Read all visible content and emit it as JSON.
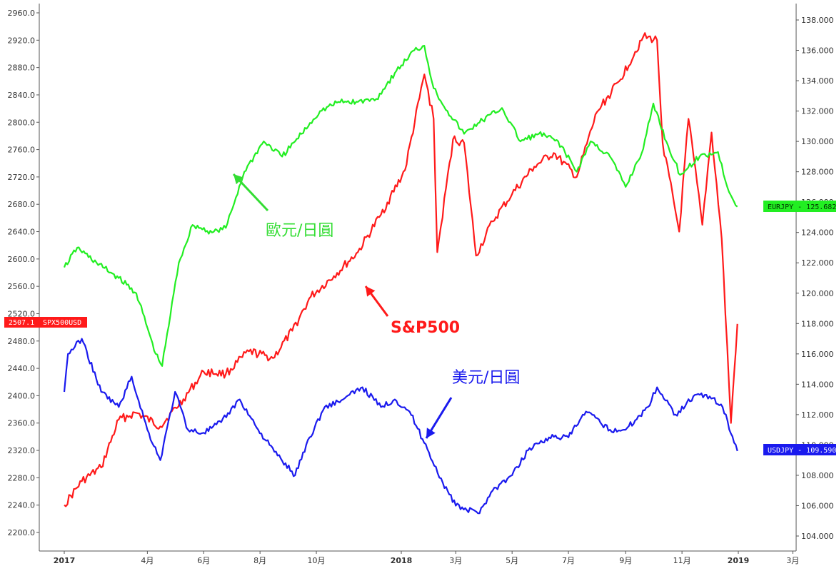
{
  "chart_data": {
    "type": "line",
    "title": "",
    "x_ticks": [
      "2017",
      "4月",
      "6月",
      "8月",
      "10月",
      "2018",
      "3月",
      "5月",
      "7月",
      "9月",
      "11月",
      "2019",
      "3月"
    ],
    "x_ticks_bold": [
      "2017",
      "2018",
      "2019"
    ],
    "y_left_ticks": [
      "2960.0",
      "2920.0",
      "2880.0",
      "2840.0",
      "2800.0",
      "2760.0",
      "2720.0",
      "2680.0",
      "2640.0",
      "2600.0",
      "2560.0",
      "2520.0",
      "2480.0",
      "2440.0",
      "2400.0",
      "2360.0",
      "2320.0",
      "2280.0",
      "2240.0",
      "2200.0"
    ],
    "y_right_ticks": [
      "138.000",
      "136.000",
      "134.000",
      "132.000",
      "130.000",
      "128.000",
      "126.000",
      "124.000",
      "122.000",
      "120.000",
      "118.000",
      "116.000",
      "114.000",
      "112.000",
      "110.000",
      "108.000",
      "106.000",
      "104.000"
    ],
    "y_left_range": [
      2200,
      2960
    ],
    "y_right_range": [
      104,
      138
    ],
    "grid": false,
    "series": [
      {
        "name": "SPX500USD",
        "axis": "left",
        "color": "#ff1a1a",
        "last_value_label": "2507.1",
        "x": [
          "2017-01-01",
          "2017-01-20",
          "2017-02-10",
          "2017-03-01",
          "2017-03-20",
          "2017-04-15",
          "2017-05-10",
          "2017-06-01",
          "2017-06-25",
          "2017-07-20",
          "2017-08-15",
          "2017-09-05",
          "2017-09-25",
          "2017-10-20",
          "2017-11-15",
          "2017-12-10",
          "2018-01-05",
          "2018-01-26",
          "2018-02-05",
          "2018-02-09",
          "2018-02-26",
          "2018-03-10",
          "2018-03-23",
          "2018-04-10",
          "2018-05-01",
          "2018-05-25",
          "2018-06-15",
          "2018-07-10",
          "2018-08-01",
          "2018-08-25",
          "2018-09-20",
          "2018-10-05",
          "2018-10-11",
          "2018-10-29",
          "2018-11-08",
          "2018-11-23",
          "2018-12-03",
          "2018-12-14",
          "2018-12-24",
          "2018-12-31"
        ],
        "y": [
          2240,
          2275,
          2295,
          2365,
          2375,
          2355,
          2395,
          2435,
          2432,
          2465,
          2455,
          2495,
          2545,
          2575,
          2610,
          2665,
          2730,
          2870,
          2805,
          2610,
          2775,
          2770,
          2605,
          2655,
          2695,
          2735,
          2755,
          2720,
          2815,
          2860,
          2925,
          2920,
          2770,
          2640,
          2805,
          2650,
          2785,
          2630,
          2360,
          2505
        ]
      },
      {
        "name": "EURJPY",
        "axis": "right",
        "color": "#22ee22",
        "last_value_label": "125.682",
        "x": [
          "2017-01-01",
          "2017-01-15",
          "2017-02-05",
          "2017-03-01",
          "2017-03-20",
          "2017-04-10",
          "2017-04-17",
          "2017-05-05",
          "2017-05-20",
          "2017-06-10",
          "2017-06-25",
          "2017-07-15",
          "2017-08-05",
          "2017-08-25",
          "2017-09-15",
          "2017-10-05",
          "2017-10-25",
          "2017-11-15",
          "2017-12-05",
          "2017-12-25",
          "2018-01-15",
          "2018-01-26",
          "2018-02-05",
          "2018-02-20",
          "2018-03-10",
          "2018-03-25",
          "2018-04-20",
          "2018-05-10",
          "2018-05-30",
          "2018-06-20",
          "2018-07-10",
          "2018-07-25",
          "2018-08-15",
          "2018-09-01",
          "2018-09-20",
          "2018-10-01",
          "2018-10-15",
          "2018-10-30",
          "2018-11-20",
          "2018-12-10",
          "2018-12-20",
          "2018-12-31"
        ],
        "y": [
          121.7,
          123,
          122,
          121,
          120,
          116,
          115.2,
          122,
          124.5,
          124,
          124.3,
          128,
          130,
          129,
          130.5,
          132,
          132.6,
          132.6,
          132.8,
          134.5,
          136,
          136.3,
          133.5,
          132,
          130.5,
          131.2,
          132.2,
          130,
          130.5,
          130,
          128,
          130,
          129,
          127,
          129.5,
          132.5,
          130,
          127.8,
          129,
          129.3,
          127,
          125.7
        ]
      },
      {
        "name": "USDJPY",
        "axis": "right",
        "color": "#1a1aee",
        "last_value_label": "109.590",
        "x": [
          "2017-01-01",
          "2017-01-05",
          "2017-01-20",
          "2017-02-10",
          "2017-03-01",
          "2017-03-15",
          "2017-04-01",
          "2017-04-15",
          "2017-05-01",
          "2017-05-15",
          "2017-06-01",
          "2017-06-20",
          "2017-07-10",
          "2017-07-30",
          "2017-08-20",
          "2017-09-08",
          "2017-09-20",
          "2017-10-10",
          "2017-10-30",
          "2017-11-20",
          "2017-12-10",
          "2017-12-25",
          "2018-01-10",
          "2018-01-31",
          "2018-02-15",
          "2018-03-01",
          "2018-03-25",
          "2018-04-10",
          "2018-05-01",
          "2018-05-20",
          "2018-06-10",
          "2018-07-01",
          "2018-07-20",
          "2018-08-15",
          "2018-09-01",
          "2018-09-25",
          "2018-10-05",
          "2018-10-25",
          "2018-11-15",
          "2018-12-01",
          "2018-12-15",
          "2018-12-31"
        ],
        "y": [
          113.5,
          116,
          117,
          113.5,
          112.5,
          114.5,
          111,
          109,
          113.5,
          111,
          110.8,
          111.5,
          113,
          111,
          109.3,
          108,
          110,
          112.5,
          113,
          113.8,
          112.5,
          113,
          112.2,
          109.5,
          107.5,
          106,
          105.5,
          107,
          108,
          109.8,
          110.5,
          110.5,
          112.2,
          111,
          111,
          112.5,
          113.8,
          112,
          113.3,
          113.2,
          112.5,
          109.6
        ]
      }
    ],
    "annotations": [
      {
        "text": "歐元/日圓",
        "color": "#33dd33"
      },
      {
        "text": "S&P500",
        "color": "#ff1a1a"
      },
      {
        "text": "美元/日圓",
        "color": "#1a1aee"
      }
    ],
    "badges": {
      "left_value": "2507.1",
      "left_name": "SPX500USD",
      "eurjpy": "EURJPY - 125.682",
      "usdjpy": "USDJPY - 109.590"
    }
  }
}
